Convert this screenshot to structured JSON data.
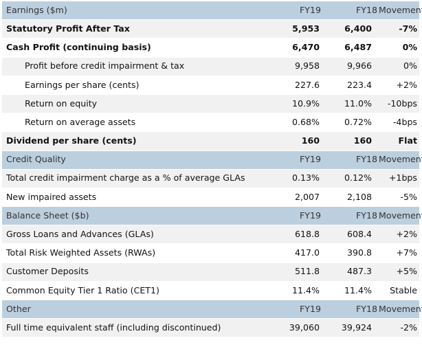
{
  "sections": [
    {
      "header": {
        "label": "Earnings ($m)",
        "fy19": "FY19",
        "fy18": "FY18",
        "movement": "Movement"
      },
      "rows": [
        {
          "label": "Statutory Profit After Tax",
          "fy19": "5,953",
          "fy18": "6,400",
          "movement": "-7%",
          "bold": true,
          "indent": false,
          "shade": "light"
        },
        {
          "label": "Cash Profit (continuing basis)",
          "fy19": "6,470",
          "fy18": "6,487",
          "movement": "0%",
          "bold": true,
          "indent": false,
          "shade": "white"
        },
        {
          "label": "Profit before credit impairment & tax",
          "fy19": "9,958",
          "fy18": "9,966",
          "movement": "0%",
          "bold": false,
          "indent": true,
          "shade": "light"
        },
        {
          "label": "Earnings per share (cents)",
          "fy19": "227.6",
          "fy18": "223.4",
          "movement": "+2%",
          "bold": false,
          "indent": true,
          "shade": "white"
        },
        {
          "label": "Return on equity",
          "fy19": "10.9%",
          "fy18": "11.0%",
          "movement": "-10bps",
          "bold": false,
          "indent": true,
          "shade": "light"
        },
        {
          "label": "Return on average assets",
          "fy19": "0.68%",
          "fy18": "0.72%",
          "movement": "-4bps",
          "bold": false,
          "indent": true,
          "shade": "white"
        },
        {
          "label": "Dividend per share (cents)",
          "fy19": "160",
          "fy18": "160",
          "movement": "Flat",
          "bold": true,
          "indent": false,
          "shade": "light"
        }
      ]
    },
    {
      "header": {
        "label": "Credit Quality",
        "fy19": "FY19",
        "fy18": "FY18",
        "movement": "Movement"
      },
      "rows": [
        {
          "label": "Total credit impairment charge as a % of average GLAs",
          "fy19": "0.13%",
          "fy18": "0.12%",
          "movement": "+1bps",
          "bold": false,
          "indent": false,
          "shade": "light"
        },
        {
          "label": "New impaired assets",
          "fy19": "2,007",
          "fy18": "2,108",
          "movement": "-5%",
          "bold": false,
          "indent": false,
          "shade": "white"
        }
      ]
    },
    {
      "header": {
        "label": "Balance Sheet ($b)",
        "fy19": "FY19",
        "fy18": "FY18",
        "movement": "Movement"
      },
      "rows": [
        {
          "label": "Gross Loans and Advances (GLAs)",
          "fy19": "618.8",
          "fy18": "608.4",
          "movement": "+2%",
          "bold": false,
          "indent": false,
          "shade": "light"
        },
        {
          "label": "Total Risk Weighted Assets (RWAs)",
          "fy19": "417.0",
          "fy18": "390.8",
          "movement": "+7%",
          "bold": false,
          "indent": false,
          "shade": "white"
        },
        {
          "label": "Customer Deposits",
          "fy19": "511.8",
          "fy18": "487.3",
          "movement": "+5%",
          "bold": false,
          "indent": false,
          "shade": "light"
        },
        {
          "label": "Common Equity Tier 1 Ratio (CET1)",
          "fy19": "11.4%",
          "fy18": "11.4%",
          "movement": "Stable",
          "bold": false,
          "indent": false,
          "shade": "white"
        }
      ]
    },
    {
      "header": {
        "label": "Other",
        "fy19": "FY19",
        "fy18": "FY18",
        "movement": "Movement"
      },
      "rows": [
        {
          "label": "Full time equivalent staff (including discontinued)",
          "fy19": "39,060",
          "fy18": "39,924",
          "movement": "-2%",
          "bold": false,
          "indent": false,
          "shade": "light"
        }
      ]
    }
  ]
}
